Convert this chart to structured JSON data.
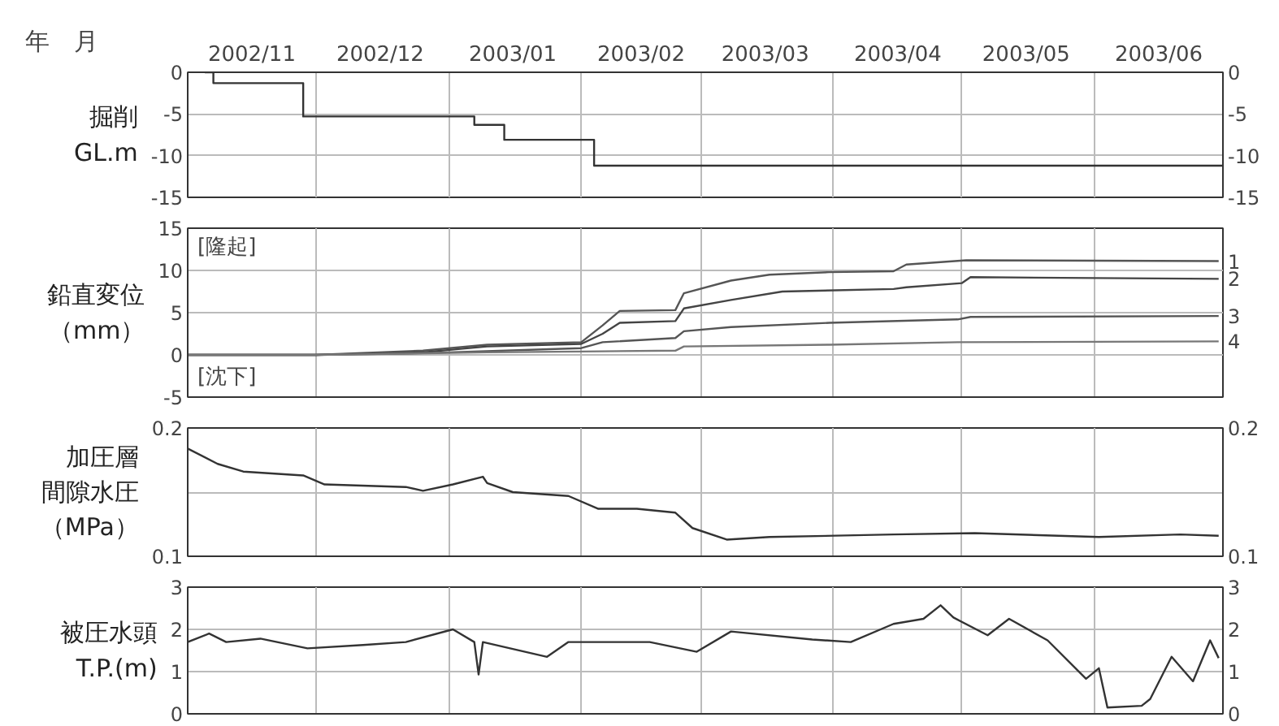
{
  "chart_data": [
    {
      "type": "step",
      "ylabel": "掘削GL.m",
      "xlabel": "年　月",
      "xlim": [
        "2002-11-01",
        "2003-07-01"
      ],
      "xticks": [
        {
          "value": "2002-11-16",
          "label": "2002/11"
        },
        {
          "value": "2002-12-01",
          "label": null
        },
        {
          "value": "2002-12-16",
          "label": "2002/12"
        },
        {
          "value": "2003-01-01",
          "label": null
        },
        {
          "value": "2003-01-16",
          "label": "2003/01"
        },
        {
          "value": "2003-02-01",
          "label": null
        },
        {
          "value": "2003-02-15",
          "label": "2003/02"
        },
        {
          "value": "2003-03-01",
          "label": null
        },
        {
          "value": "2003-03-16",
          "label": "2003/03"
        },
        {
          "value": "2003-04-01",
          "label": null
        },
        {
          "value": "2003-04-16",
          "label": "2003/04"
        },
        {
          "value": "2003-05-01",
          "label": null
        },
        {
          "value": "2003-05-16",
          "label": "2003/05"
        },
        {
          "value": "2003-06-01",
          "label": null
        },
        {
          "value": "2003-06-16",
          "label": "2003/06"
        }
      ],
      "ylim": [
        -15,
        0
      ],
      "yticks": [
        -15,
        -10,
        -5,
        0
      ],
      "y2lim": [
        -15,
        0
      ],
      "y2ticks": [
        -15,
        -10,
        -5,
        0
      ],
      "grid": true,
      "series": [
        {
          "color": "#333333",
          "x": [
            "2002-11-05",
            "2002-11-07",
            "2002-11-28",
            "2003-01-07",
            "2003-01-14",
            "2003-02-04",
            "2003-07-01"
          ],
          "values": [
            0,
            -1.3,
            -5.3,
            -6.3,
            -8.1,
            -11.2,
            -11.2
          ]
        }
      ]
    },
    {
      "type": "line",
      "ylabel": "鉛直変位（mm）",
      "xlim": [
        "2002-11-01",
        "2003-07-01"
      ],
      "xticks": [
        {
          "value": "2002-12-01",
          "label": null
        },
        {
          "value": "2003-01-01",
          "label": null
        },
        {
          "value": "2003-02-01",
          "label": null
        },
        {
          "value": "2003-03-01",
          "label": null
        },
        {
          "value": "2003-04-01",
          "label": null
        },
        {
          "value": "2003-05-01",
          "label": null
        },
        {
          "value": "2003-06-01",
          "label": null
        }
      ],
      "ylim": [
        -5,
        15
      ],
      "yticks": [
        -5,
        0,
        5,
        10,
        15
      ],
      "tick_labels": "y",
      "grid": true,
      "annotations": [
        "[隆起]",
        "[沈下]"
      ],
      "series": [
        {
          "name": "1",
          "color": "#555555",
          "x": [
            "2002-11-01",
            "2002-12-01",
            "2002-12-26",
            "2003-01-10",
            "2003-02-01",
            "2003-02-06",
            "2003-02-10",
            "2003-02-23",
            "2003-02-25",
            "2003-03-08",
            "2003-03-17",
            "2003-03-31",
            "2003-04-15",
            "2003-04-18",
            "2003-05-02",
            "2003-06-30"
          ],
          "values": [
            0,
            0,
            0.5,
            1.2,
            1.5,
            3.5,
            5.2,
            5.3,
            7.3,
            8.8,
            9.5,
            9.8,
            9.9,
            10.7,
            11.2,
            11.1
          ]
        },
        {
          "name": "2",
          "color": "#444444",
          "x": [
            "2002-11-01",
            "2002-12-01",
            "2002-12-26",
            "2003-01-10",
            "2003-02-01",
            "2003-02-06",
            "2003-02-10",
            "2003-02-23",
            "2003-02-25",
            "2003-03-08",
            "2003-03-20",
            "2003-04-15",
            "2003-04-18",
            "2003-05-01",
            "2003-05-03",
            "2003-06-30"
          ],
          "values": [
            0,
            0,
            0.3,
            1.0,
            1.3,
            2.5,
            3.8,
            4.0,
            5.5,
            6.5,
            7.5,
            7.8,
            8.0,
            8.5,
            9.2,
            9.0
          ]
        },
        {
          "name": "3",
          "color": "#555555",
          "x": [
            "2002-11-01",
            "2002-12-01",
            "2002-12-26",
            "2003-02-01",
            "2003-02-06",
            "2003-02-23",
            "2003-02-25",
            "2003-03-08",
            "2003-03-31",
            "2003-04-30",
            "2003-05-03",
            "2003-06-30"
          ],
          "values": [
            0,
            0,
            0.2,
            0.8,
            1.5,
            2.0,
            2.8,
            3.3,
            3.8,
            4.2,
            4.5,
            4.6
          ]
        },
        {
          "name": "4",
          "color": "#777777",
          "x": [
            "2002-11-01",
            "2002-12-01",
            "2003-01-10",
            "2003-02-01",
            "2003-02-23",
            "2003-02-25",
            "2003-03-31",
            "2003-04-30",
            "2003-06-30"
          ],
          "values": [
            0,
            0,
            0.3,
            0.4,
            0.5,
            1.0,
            1.2,
            1.5,
            1.6
          ]
        }
      ]
    },
    {
      "type": "line",
      "ylabel": "加圧層間隙水圧（MPa）",
      "xlim": [
        "2002-11-01",
        "2003-07-01"
      ],
      "xticks": [
        {
          "value": "2002-12-01",
          "label": null
        },
        {
          "value": "2003-01-01",
          "label": null
        },
        {
          "value": "2003-02-01",
          "label": null
        },
        {
          "value": "2003-03-01",
          "label": null
        },
        {
          "value": "2003-04-01",
          "label": null
        },
        {
          "value": "2003-05-01",
          "label": null
        },
        {
          "value": "2003-06-01",
          "label": null
        }
      ],
      "ylim": [
        0.1,
        0.2
      ],
      "yticks": [
        0.1,
        {
          "value": 0.15,
          "label": null
        },
        0.2
      ],
      "y2lim": [
        0.1,
        0.2
      ],
      "y2ticks": [
        0.1,
        0.2
      ],
      "tick_labels": "y",
      "grid": true,
      "series": [
        {
          "color": "#333333",
          "x": [
            "2002-11-01",
            "2002-11-08",
            "2002-11-14",
            "2002-11-28",
            "2002-12-03",
            "2002-12-22",
            "2002-12-26",
            "2003-01-02",
            "2003-01-09",
            "2003-01-10",
            "2003-01-16",
            "2003-01-29",
            "2003-02-05",
            "2003-02-14",
            "2003-02-23",
            "2003-02-27",
            "2003-03-07",
            "2003-03-17",
            "2003-04-15",
            "2003-05-04",
            "2003-06-02",
            "2003-06-21",
            "2003-06-30"
          ],
          "values": [
            0.184,
            0.172,
            0.166,
            0.163,
            0.156,
            0.154,
            0.151,
            0.156,
            0.162,
            0.157,
            0.15,
            0.147,
            0.137,
            0.137,
            0.134,
            0.122,
            0.113,
            0.115,
            0.117,
            0.118,
            0.115,
            0.117,
            0.116
          ]
        }
      ]
    },
    {
      "type": "line",
      "ylabel": "被圧水頭T.P.(m)",
      "xlim": [
        "2002-11-01",
        "2003-07-01"
      ],
      "xticks": [
        {
          "value": "2002-12-01",
          "label": null
        },
        {
          "value": "2003-01-01",
          "label": null
        },
        {
          "value": "2003-02-01",
          "label": null
        },
        {
          "value": "2003-03-01",
          "label": null
        },
        {
          "value": "2003-04-01",
          "label": null
        },
        {
          "value": "2003-05-01",
          "label": null
        },
        {
          "value": "2003-06-01",
          "label": null
        }
      ],
      "ylim": [
        0,
        3
      ],
      "yticks": [
        0,
        1,
        2,
        3
      ],
      "y2lim": [
        0,
        3
      ],
      "y2ticks": [
        0,
        1,
        2,
        3
      ],
      "tick_labels": "y",
      "grid": true,
      "series": [
        {
          "color": "#333333",
          "x": [
            "2002-11-01",
            "2002-11-06",
            "2002-11-10",
            "2002-11-18",
            "2002-11-29",
            "2002-12-12",
            "2002-12-22",
            "2003-01-02",
            "2003-01-07",
            "2003-01-08",
            "2003-01-09",
            "2003-01-24",
            "2003-01-29",
            "2003-02-17",
            "2003-02-28",
            "2003-03-08",
            "2003-03-27",
            "2003-04-05",
            "2003-04-15",
            "2003-04-22",
            "2003-04-26",
            "2003-04-29",
            "2003-05-07",
            "2003-05-12",
            "2003-05-21",
            "2003-05-30",
            "2003-06-02",
            "2003-06-04",
            "2003-06-12",
            "2003-06-14",
            "2003-06-19",
            "2003-06-24",
            "2003-06-28",
            "2003-06-30"
          ],
          "values": [
            1.7,
            1.9,
            1.7,
            1.78,
            1.55,
            1.63,
            1.7,
            2.0,
            1.7,
            0.93,
            1.7,
            1.35,
            1.7,
            1.7,
            1.47,
            1.95,
            1.76,
            1.7,
            2.13,
            2.25,
            2.57,
            2.28,
            1.86,
            2.25,
            1.74,
            0.83,
            1.08,
            0.15,
            0.19,
            0.35,
            1.35,
            0.77,
            1.74,
            1.32
          ]
        }
      ]
    }
  ]
}
